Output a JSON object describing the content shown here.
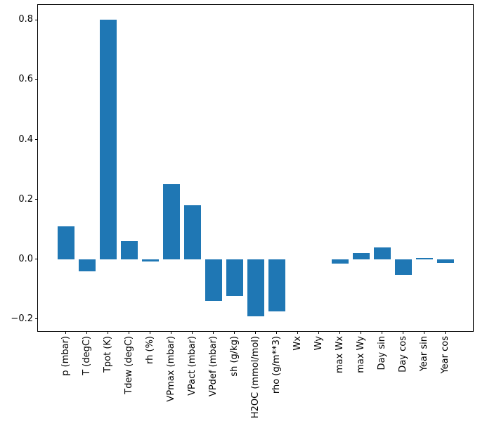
{
  "chart_data": {
    "type": "bar",
    "title": "",
    "xlabel": "",
    "ylabel": "",
    "grid": false,
    "legend": "none",
    "background": "#ffffff",
    "bar_color": "#1f77b4",
    "axis_color": "#000000",
    "categories": [
      "p (mbar)",
      "T (degC)",
      "Tpot (K)",
      "Tdew (degC)",
      "rh (%)",
      "VPmax (mbar)",
      "VPact (mbar)",
      "VPdef (mbar)",
      "sh (g/kg)",
      "H2OC (mmol/mol)",
      "rho (g/m**3)",
      "Wx",
      "Wy",
      "max Wx",
      "max Wy",
      "Day sin",
      "Day cos",
      "Year sin",
      "Year cos"
    ],
    "values": [
      0.11,
      -0.04,
      0.8,
      0.06,
      -0.008,
      0.25,
      0.18,
      -0.14,
      -0.123,
      -0.19,
      -0.175,
      0.0,
      0.0,
      -0.015,
      0.021,
      0.04,
      -0.051,
      0.005,
      -0.013
    ],
    "ylim": [
      -0.24,
      0.85
    ],
    "yticks": [
      -0.2,
      0.0,
      0.2,
      0.4,
      0.6,
      0.8
    ],
    "ytick_labels": [
      "−0.2",
      "0.0",
      "0.2",
      "0.4",
      "0.6",
      "0.8"
    ]
  }
}
